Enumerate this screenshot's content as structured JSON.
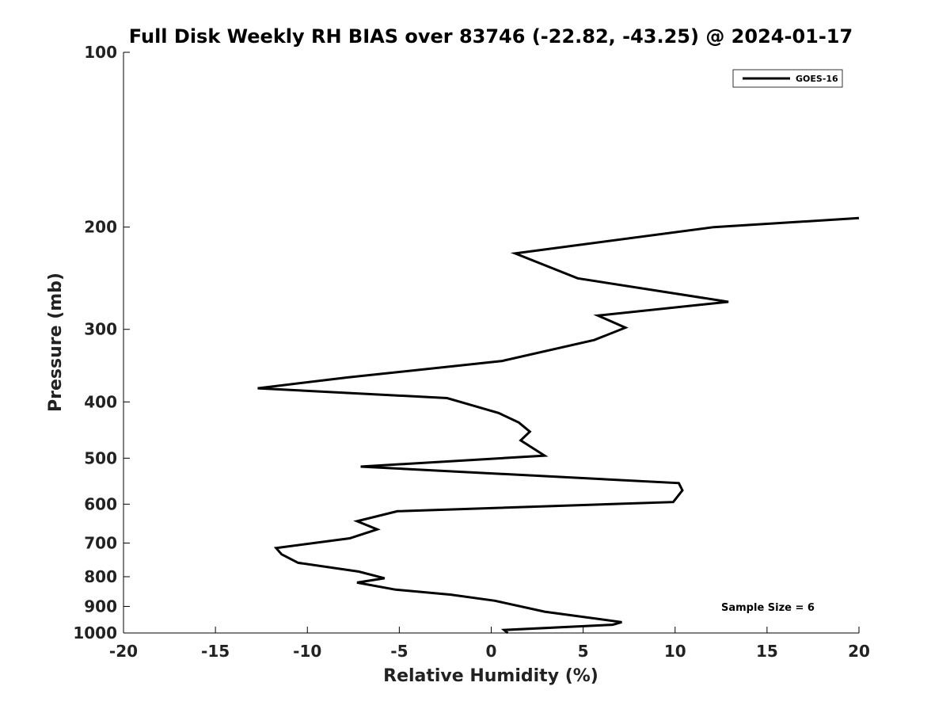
{
  "chart_data": {
    "type": "line",
    "title": "Full Disk Weekly RH BIAS over 83746 (-22.82, -43.25) @ 2024-01-17",
    "xlabel": "Relative Humidity (%)",
    "ylabel": "Pressure (mb)",
    "xlim": [
      -20,
      20
    ],
    "ylim": [
      1000,
      100
    ],
    "yscale": "log",
    "x_ticks": [
      -20,
      -15,
      -10,
      -5,
      0,
      5,
      10,
      15,
      20
    ],
    "y_ticks": [
      100,
      200,
      300,
      400,
      500,
      600,
      700,
      800,
      900,
      1000
    ],
    "grid": false,
    "legend_position": "top-right",
    "annotation": "Sample Size = 6",
    "line_color": "#000000",
    "series": [
      {
        "name": "GOES-16",
        "points": [
          {
            "x": 20.0,
            "y": 193
          },
          {
            "x": 12.1,
            "y": 200
          },
          {
            "x": 1.3,
            "y": 222
          },
          {
            "x": 4.7,
            "y": 245
          },
          {
            "x": 12.9,
            "y": 269
          },
          {
            "x": 5.8,
            "y": 284
          },
          {
            "x": 7.3,
            "y": 298
          },
          {
            "x": 5.6,
            "y": 313
          },
          {
            "x": 0.6,
            "y": 340
          },
          {
            "x": -7.8,
            "y": 363
          },
          {
            "x": -12.7,
            "y": 379
          },
          {
            "x": -2.4,
            "y": 394
          },
          {
            "x": 0.4,
            "y": 418
          },
          {
            "x": 1.5,
            "y": 434
          },
          {
            "x": 2.1,
            "y": 450
          },
          {
            "x": 1.6,
            "y": 466
          },
          {
            "x": 2.9,
            "y": 495
          },
          {
            "x": -7.1,
            "y": 517
          },
          {
            "x": 10.2,
            "y": 552
          },
          {
            "x": 10.4,
            "y": 568
          },
          {
            "x": 9.9,
            "y": 595
          },
          {
            "x": -5.1,
            "y": 617
          },
          {
            "x": -7.3,
            "y": 642
          },
          {
            "x": -6.2,
            "y": 663
          },
          {
            "x": -7.7,
            "y": 687
          },
          {
            "x": -11.7,
            "y": 714
          },
          {
            "x": -11.4,
            "y": 732
          },
          {
            "x": -10.5,
            "y": 757
          },
          {
            "x": -7.2,
            "y": 784
          },
          {
            "x": -5.8,
            "y": 805
          },
          {
            "x": -7.3,
            "y": 819
          },
          {
            "x": -5.2,
            "y": 842
          },
          {
            "x": -2.2,
            "y": 859
          },
          {
            "x": 0.2,
            "y": 880
          },
          {
            "x": 2.9,
            "y": 919
          },
          {
            "x": 7.1,
            "y": 958
          },
          {
            "x": 6.6,
            "y": 968
          },
          {
            "x": 0.7,
            "y": 988
          },
          {
            "x": 0.9,
            "y": 1000
          }
        ]
      }
    ]
  }
}
